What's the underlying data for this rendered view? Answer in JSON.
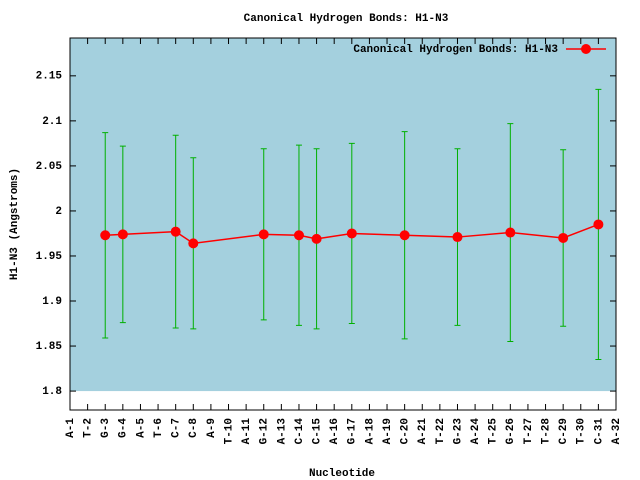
{
  "chart_data": {
    "type": "errorline",
    "title": "Canonical Hydrogen Bonds: H1-N3",
    "xlabel": "Nucleotide",
    "ylabel": "H1-N3 (Angstroms)",
    "xlim": [
      1,
      32
    ],
    "xticks": [
      {
        "value": 1,
        "label": "A-1"
      },
      {
        "value": 2,
        "label": "T-2"
      },
      {
        "value": 3,
        "label": "G-3"
      },
      {
        "value": 4,
        "label": "G-4"
      },
      {
        "value": 5,
        "label": "A-5"
      },
      {
        "value": 6,
        "label": "T-6"
      },
      {
        "value": 7,
        "label": "C-7"
      },
      {
        "value": 8,
        "label": "C-8"
      },
      {
        "value": 9,
        "label": "A-9"
      },
      {
        "value": 10,
        "label": "T-10"
      },
      {
        "value": 11,
        "label": "A-11"
      },
      {
        "value": 12,
        "label": "G-12"
      },
      {
        "value": 13,
        "label": "A-13"
      },
      {
        "value": 14,
        "label": "C-14"
      },
      {
        "value": 15,
        "label": "C-15"
      },
      {
        "value": 16,
        "label": "A-16"
      },
      {
        "value": 17,
        "label": "G-17"
      },
      {
        "value": 18,
        "label": "A-18"
      },
      {
        "value": 19,
        "label": "A-19"
      },
      {
        "value": 20,
        "label": "C-20"
      },
      {
        "value": 21,
        "label": "A-21"
      },
      {
        "value": 22,
        "label": "T-22"
      },
      {
        "value": 23,
        "label": "G-23"
      },
      {
        "value": 24,
        "label": "A-24"
      },
      {
        "value": 25,
        "label": "T-25"
      },
      {
        "value": 26,
        "label": "G-26"
      },
      {
        "value": 27,
        "label": "T-27"
      },
      {
        "value": 28,
        "label": "T-28"
      },
      {
        "value": 29,
        "label": "C-29"
      },
      {
        "value": 30,
        "label": "T-30"
      },
      {
        "value": 31,
        "label": "C-31"
      },
      {
        "value": 32,
        "label": "A-32"
      }
    ],
    "ylim": [
      1.779,
      2.192
    ],
    "yticks": [
      1.8,
      1.85,
      1.9,
      1.95,
      2,
      2.05,
      2.1,
      2.15
    ],
    "background": "#a4d0de",
    "legend": "top-right",
    "series": [
      {
        "name": "Canonical Hydrogen Bonds: H1-N3",
        "color": "#ff0000",
        "error_color": "#00b000",
        "x": [
          3,
          4,
          7,
          8,
          12,
          14,
          15,
          17,
          20,
          23,
          26,
          29,
          31
        ],
        "values": [
          1.973,
          1.974,
          1.977,
          1.964,
          1.974,
          1.973,
          1.969,
          1.975,
          1.973,
          1.971,
          1.976,
          1.97,
          1.985
        ],
        "errors": [
          0.114,
          0.098,
          0.107,
          0.095,
          0.095,
          0.1,
          0.1,
          0.1,
          0.115,
          0.098,
          0.121,
          0.098,
          0.15
        ]
      }
    ]
  }
}
